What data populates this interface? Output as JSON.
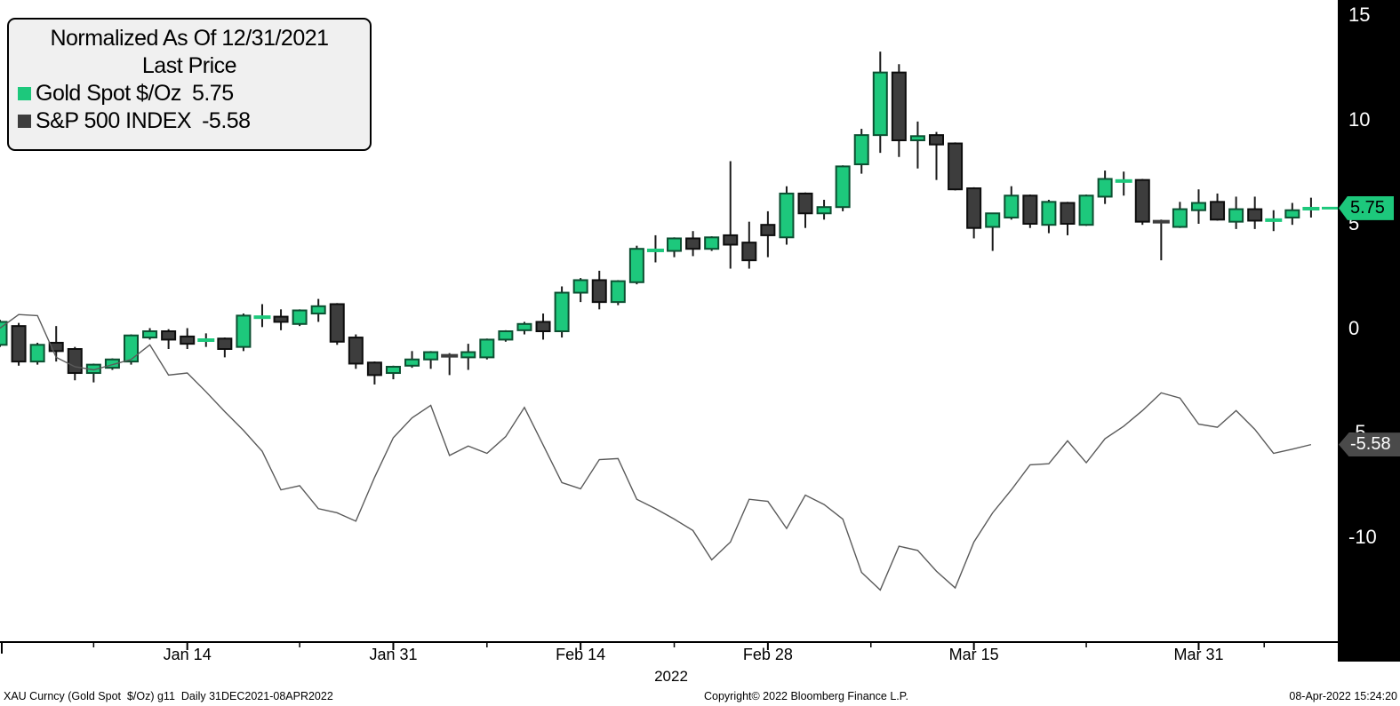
{
  "legend": {
    "title": "Normalized As Of 12/31/2021",
    "subtitle": "Last Price",
    "items": [
      {
        "label": "Gold Spot $/Oz",
        "value": "5.75",
        "color": "#1dc87c"
      },
      {
        "label": "S&P 500 INDEX",
        "value": "-5.58",
        "color": "#3d3d3d"
      }
    ]
  },
  "chart_data": {
    "type": "candlestick+line",
    "title": "Normalized As Of 12/31/2021",
    "subtitle": "Last Price",
    "x_unit": "trading days, 31DEC2021 through 08APR2022",
    "grid": false,
    "y_axis": {
      "side": "right",
      "ticks": [
        15,
        10,
        5,
        0,
        -5,
        -10
      ],
      "range": [
        -15.0,
        15.7
      ]
    },
    "x_ticks": [
      {
        "label": "Jan 14",
        "i": 10
      },
      {
        "label": "Jan 31",
        "i": 21
      },
      {
        "label": "Feb 14",
        "i": 31
      },
      {
        "label": "Feb 28",
        "i": 41
      },
      {
        "label": "Mar 15",
        "i": 52
      },
      {
        "label": "Mar 31",
        "i": 64
      }
    ],
    "x_minor_ticks": [
      5,
      16,
      26,
      36,
      46.5,
      58,
      67.5
    ],
    "year_label": "2022",
    "series": [
      {
        "name": "Gold Spot $/Oz",
        "type": "candlestick",
        "last": 5.75,
        "up_color": "#1dc87c",
        "down_color": "#3d3d3d",
        "ohlc": [
          [
            -0.8,
            0.4,
            -0.9,
            0.3
          ],
          [
            0.1,
            0.25,
            -1.8,
            -1.6
          ],
          [
            -1.6,
            -0.7,
            -1.75,
            -0.8
          ],
          [
            -0.7,
            0.1,
            -1.6,
            -1.1
          ],
          [
            -1.0,
            -0.9,
            -2.5,
            -2.15
          ],
          [
            -2.15,
            -1.7,
            -2.6,
            -1.75
          ],
          [
            -1.9,
            -1.45,
            -2.0,
            -1.5
          ],
          [
            -1.6,
            -0.3,
            -1.75,
            -0.35
          ],
          [
            -0.45,
            0.0,
            -0.55,
            -0.15
          ],
          [
            -0.15,
            -0.05,
            -1.0,
            -0.55
          ],
          [
            -0.4,
            0.0,
            -1.0,
            -0.75
          ],
          [
            -0.6,
            -0.25,
            -0.9,
            -0.55
          ],
          [
            -0.5,
            -0.45,
            -1.4,
            -1.0
          ],
          [
            -0.9,
            0.7,
            -1.1,
            0.6
          ],
          [
            0.5,
            1.15,
            0.05,
            0.55
          ],
          [
            0.55,
            0.9,
            -0.1,
            0.3
          ],
          [
            0.2,
            0.9,
            0.1,
            0.85
          ],
          [
            0.7,
            1.4,
            0.3,
            1.05
          ],
          [
            1.15,
            1.2,
            -0.8,
            -0.65
          ],
          [
            -0.45,
            -0.3,
            -1.95,
            -1.7
          ],
          [
            -1.65,
            -1.6,
            -2.7,
            -2.25
          ],
          [
            -2.15,
            -1.8,
            -2.45,
            -1.85
          ],
          [
            -1.8,
            -1.1,
            -1.9,
            -1.5
          ],
          [
            -1.5,
            -1.1,
            -1.95,
            -1.15
          ],
          [
            -1.3,
            -1.2,
            -2.25,
            -1.35
          ],
          [
            -1.4,
            -0.75,
            -2.0,
            -1.15
          ],
          [
            -1.4,
            -0.5,
            -1.5,
            -0.55
          ],
          [
            -0.55,
            -0.1,
            -0.65,
            -0.15
          ],
          [
            -0.1,
            0.3,
            -0.3,
            0.2
          ],
          [
            0.3,
            0.7,
            -0.55,
            -0.15
          ],
          [
            -0.15,
            2.0,
            -0.45,
            1.7
          ],
          [
            1.7,
            2.4,
            1.25,
            2.3
          ],
          [
            2.3,
            2.75,
            0.9,
            1.25
          ],
          [
            1.25,
            2.3,
            1.1,
            2.25
          ],
          [
            2.2,
            3.95,
            2.1,
            3.8
          ],
          [
            3.7,
            4.45,
            3.15,
            3.75
          ],
          [
            3.7,
            4.35,
            3.4,
            4.3
          ],
          [
            4.3,
            4.65,
            3.45,
            3.8
          ],
          [
            3.8,
            4.4,
            3.7,
            4.35
          ],
          [
            4.45,
            8.0,
            2.85,
            4.0
          ],
          [
            4.1,
            5.1,
            2.85,
            3.25
          ],
          [
            4.95,
            5.6,
            3.4,
            4.45
          ],
          [
            4.35,
            6.8,
            4.0,
            6.45
          ],
          [
            6.45,
            6.5,
            4.8,
            5.5
          ],
          [
            5.5,
            6.15,
            5.2,
            5.8
          ],
          [
            5.8,
            7.8,
            5.6,
            7.75
          ],
          [
            7.85,
            9.55,
            7.4,
            9.25
          ],
          [
            9.25,
            13.25,
            8.4,
            12.25
          ],
          [
            12.25,
            12.65,
            8.2,
            9.0
          ],
          [
            9.0,
            9.9,
            7.65,
            9.2
          ],
          [
            9.25,
            9.4,
            7.1,
            8.8
          ],
          [
            8.85,
            8.9,
            6.6,
            6.65
          ],
          [
            6.7,
            6.75,
            4.3,
            4.8
          ],
          [
            4.85,
            5.5,
            3.7,
            5.5
          ],
          [
            5.3,
            6.8,
            5.2,
            6.35
          ],
          [
            6.35,
            6.4,
            4.8,
            5.0
          ],
          [
            4.95,
            6.15,
            4.55,
            6.05
          ],
          [
            6.0,
            6.05,
            4.45,
            5.0
          ],
          [
            4.95,
            6.4,
            4.9,
            6.35
          ],
          [
            6.3,
            7.55,
            5.95,
            7.15
          ],
          [
            7.0,
            7.5,
            6.35,
            7.1
          ],
          [
            7.1,
            7.15,
            4.95,
            5.1
          ],
          [
            5.15,
            5.2,
            3.25,
            5.05
          ],
          [
            4.85,
            6.05,
            4.8,
            5.7
          ],
          [
            5.65,
            6.65,
            5.0,
            6.0
          ],
          [
            6.05,
            6.45,
            5.15,
            5.2
          ],
          [
            5.1,
            6.3,
            4.75,
            5.7
          ],
          [
            5.7,
            6.3,
            4.75,
            5.15
          ],
          [
            5.15,
            5.65,
            4.65,
            5.2
          ],
          [
            5.3,
            6.0,
            4.95,
            5.65
          ],
          [
            5.7,
            6.25,
            5.3,
            5.75
          ]
        ]
      },
      {
        "name": "S&P 500 INDEX",
        "type": "line",
        "last": -5.58,
        "color": "#5a5a5a",
        "values": [
          0.0,
          0.65,
          0.6,
          -1.4,
          -1.85,
          -2.0,
          -1.75,
          -1.5,
          -0.8,
          -2.25,
          -2.15,
          -3.05,
          -4.0,
          -4.9,
          -5.9,
          -7.75,
          -7.55,
          -8.65,
          -8.85,
          -9.25,
          -7.15,
          -5.25,
          -4.3,
          -3.7,
          -6.1,
          -5.65,
          -6.0,
          -5.2,
          -3.8,
          -5.6,
          -7.4,
          -7.7,
          -6.3,
          -6.25,
          -8.2,
          -8.65,
          -9.15,
          -9.7,
          -11.1,
          -10.25,
          -8.2,
          -8.3,
          -9.6,
          -8.0,
          -8.45,
          -9.15,
          -11.7,
          -12.55,
          -10.45,
          -10.65,
          -11.65,
          -12.45,
          -10.25,
          -8.85,
          -7.75,
          -6.55,
          -6.5,
          -5.4,
          -6.45,
          -5.3,
          -4.7,
          -3.95,
          -3.1,
          -3.35,
          -4.6,
          -4.75,
          -3.95,
          -4.85,
          -6.0,
          -5.8,
          -5.58
        ]
      }
    ]
  },
  "axis_panel": {
    "bg": "#000000",
    "text_color": "#ffffff"
  },
  "badges": [
    {
      "text": "5.75",
      "value": 5.75,
      "bg": "#1dc87c",
      "color": "#000000",
      "width": 62
    },
    {
      "text": "-5.58",
      "value": -5.58,
      "bg": "#4a4a4a",
      "color": "#ffffff",
      "width": 72
    }
  ],
  "footer": {
    "left": "XAU Curncy (Gold Spot  $/Oz) g11  Daily 31DEC2021-08APR2022",
    "center": "Copyright© 2022 Bloomberg Finance L.P.",
    "right": "08-Apr-2022 15:24:20"
  }
}
